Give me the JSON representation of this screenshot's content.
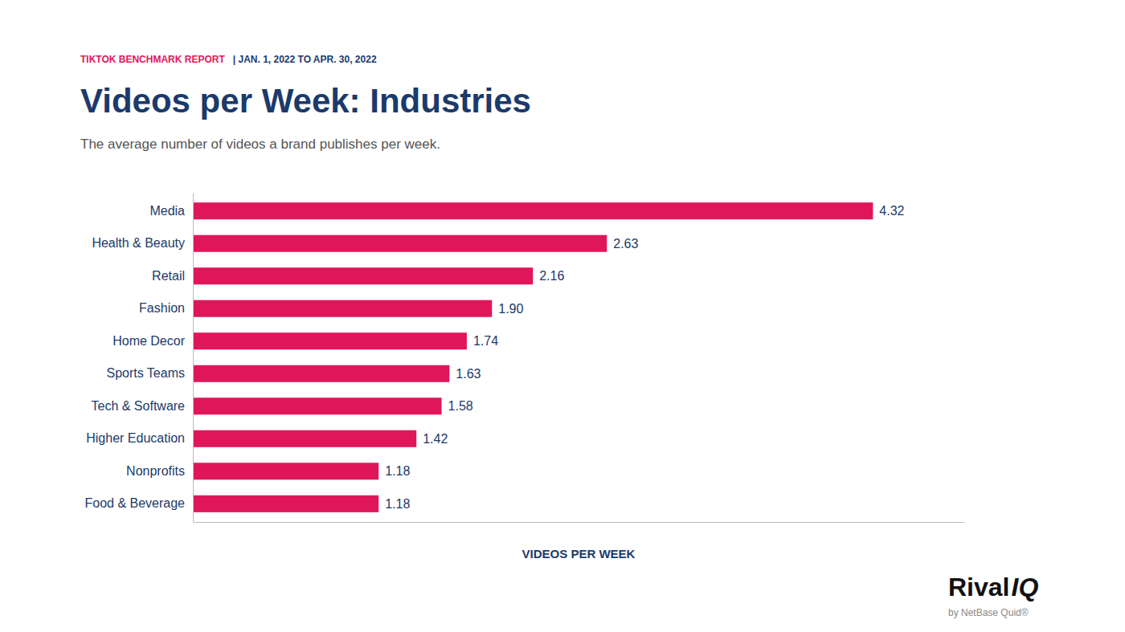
{
  "chart_data": {
    "type": "bar",
    "orientation": "horizontal",
    "title": "Videos per Week: Industries",
    "subtitle": "The average number of videos a brand publishes per week.",
    "xlabel": "VIDEOS PER WEEK",
    "annotations": [
      "TIKTOK BENCHMARK REPORT",
      "|  JAN. 1, 2022 TO APR. 30, 2022",
      "Rival",
      "IQ",
      "by NetBase Quid®"
    ],
    "categories": [
      "Media",
      "Health & Beauty",
      "Retail",
      "Fashion",
      "Home Decor",
      "Sports Teams",
      "Tech & Software",
      "Higher Education",
      "Nonprofits",
      "Food & Beverage"
    ],
    "values": [
      4.32,
      2.63,
      2.16,
      1.9,
      1.74,
      1.63,
      1.58,
      1.42,
      1.18,
      1.18
    ],
    "value_labels": [
      "4.32",
      "2.63",
      "2.16",
      "1.90",
      "1.74",
      "1.63",
      "1.58",
      "1.42",
      "1.18",
      "1.18"
    ],
    "color": "#E0165A",
    "xlim": [
      0,
      4.9
    ],
    "data_labels": true,
    "tick_labels": "y",
    "grid": false
  }
}
